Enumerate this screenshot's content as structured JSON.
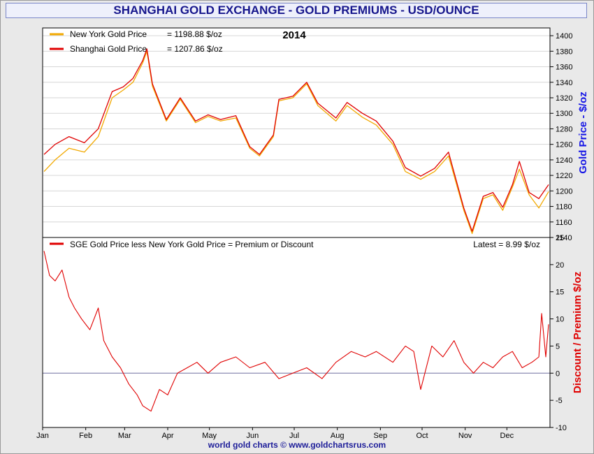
{
  "title": "SHANGHAI GOLD EXCHANGE - GOLD PREMIUMS - USD/OUNCE",
  "footer": "world gold charts © www.goldchartsrus.com",
  "colors": {
    "new_york": "#f2a900",
    "shanghai": "#e00000",
    "premium": "#e00000",
    "zero_line": "#7070a0",
    "title_text": "#16168c",
    "right_axis_top": "#1616e6",
    "right_axis_bottom": "#e00000"
  },
  "chart_data": [
    {
      "type": "line",
      "title": "2014",
      "ylabel": "Gold Price - $/oz",
      "ylim": [
        1140,
        1410
      ],
      "yticks": [
        1140,
        1160,
        1180,
        1200,
        1220,
        1240,
        1260,
        1280,
        1300,
        1320,
        1340,
        1360,
        1380,
        1400
      ],
      "grid": true,
      "legend_position": "top-left",
      "x": [
        "2014-01-02",
        "2014-01-10",
        "2014-01-20",
        "2014-01-31",
        "2014-02-10",
        "2014-02-20",
        "2014-02-28",
        "2014-03-07",
        "2014-03-14",
        "2014-03-17",
        "2014-03-21",
        "2014-03-31",
        "2014-04-10",
        "2014-04-21",
        "2014-04-30",
        "2014-05-09",
        "2014-05-20",
        "2014-05-30",
        "2014-06-06",
        "2014-06-16",
        "2014-06-20",
        "2014-06-30",
        "2014-07-10",
        "2014-07-18",
        "2014-07-31",
        "2014-08-08",
        "2014-08-19",
        "2014-08-29",
        "2014-09-10",
        "2014-09-19",
        "2014-09-30",
        "2014-10-10",
        "2014-10-20",
        "2014-10-31",
        "2014-11-06",
        "2014-11-14",
        "2014-11-21",
        "2014-11-28",
        "2014-12-05",
        "2014-12-10",
        "2014-12-17",
        "2014-12-24",
        "2014-12-31"
      ],
      "series": [
        {
          "name": "New York Gold Price",
          "label": "= 1198.88 $/oz",
          "values": [
            1225,
            1240,
            1255,
            1250,
            1270,
            1320,
            1330,
            1340,
            1365,
            1380,
            1335,
            1290,
            1318,
            1288,
            1296,
            1290,
            1294,
            1255,
            1245,
            1270,
            1316,
            1320,
            1338,
            1310,
            1290,
            1310,
            1295,
            1285,
            1260,
            1225,
            1215,
            1225,
            1245,
            1175,
            1145,
            1190,
            1195,
            1175,
            1205,
            1228,
            1195,
            1178,
            1199
          ]
        },
        {
          "name": "Shanghai Gold Price",
          "label": "= 1207.86 $/oz",
          "values": [
            1247,
            1260,
            1270,
            1262,
            1280,
            1328,
            1334,
            1345,
            1368,
            1383,
            1338,
            1292,
            1320,
            1290,
            1298,
            1292,
            1297,
            1257,
            1247,
            1272,
            1318,
            1322,
            1340,
            1313,
            1294,
            1314,
            1300,
            1290,
            1264,
            1230,
            1219,
            1229,
            1250,
            1178,
            1148,
            1193,
            1198,
            1179,
            1208,
            1238,
            1198,
            1190,
            1208
          ]
        }
      ]
    },
    {
      "type": "line",
      "ylabel": "Discount / Premium $/oz",
      "ylim": [
        -10,
        25
      ],
      "yticks": [
        -10,
        -5,
        0,
        5,
        10,
        15,
        20,
        25
      ],
      "grid": false,
      "legend_position": "top-left",
      "latest_label": "Latest = 8.99 $/oz",
      "xlabels": [
        "Jan",
        "Feb",
        "Mar",
        "Apr",
        "May",
        "Jun",
        "Jul",
        "Aug",
        "Sep",
        "Oct",
        "Nov",
        "Dec"
      ],
      "x": [
        "2014-01-02",
        "2014-01-06",
        "2014-01-10",
        "2014-01-15",
        "2014-01-20",
        "2014-01-24",
        "2014-01-29",
        "2014-02-04",
        "2014-02-10",
        "2014-02-14",
        "2014-02-20",
        "2014-02-26",
        "2014-03-04",
        "2014-03-10",
        "2014-03-14",
        "2014-03-20",
        "2014-03-26",
        "2014-04-01",
        "2014-04-08",
        "2014-04-15",
        "2014-04-22",
        "2014-04-30",
        "2014-05-09",
        "2014-05-20",
        "2014-05-30",
        "2014-06-10",
        "2014-06-20",
        "2014-06-30",
        "2014-07-10",
        "2014-07-21",
        "2014-07-31",
        "2014-08-11",
        "2014-08-21",
        "2014-08-29",
        "2014-09-10",
        "2014-09-19",
        "2014-09-25",
        "2014-09-30",
        "2014-10-08",
        "2014-10-16",
        "2014-10-24",
        "2014-10-31",
        "2014-11-07",
        "2014-11-14",
        "2014-11-21",
        "2014-11-28",
        "2014-12-05",
        "2014-12-12",
        "2014-12-19",
        "2014-12-24",
        "2014-12-26",
        "2014-12-29",
        "2014-12-31"
      ],
      "series": [
        {
          "name": "SGE Gold Price less New York Gold Price = Premium or Discount",
          "values": [
            22.5,
            18,
            17,
            19,
            14,
            12,
            10,
            8,
            12,
            6,
            3,
            1,
            -2,
            -4,
            -6,
            -7,
            -3,
            -4,
            0,
            1,
            2,
            0,
            2,
            3,
            1,
            2,
            -1,
            0,
            1,
            -1,
            2,
            4,
            3,
            4,
            2,
            5,
            4,
            -3,
            5,
            3,
            6,
            2,
            0,
            2,
            1,
            3,
            4,
            1,
            2,
            3,
            11,
            3,
            9
          ]
        }
      ]
    }
  ]
}
